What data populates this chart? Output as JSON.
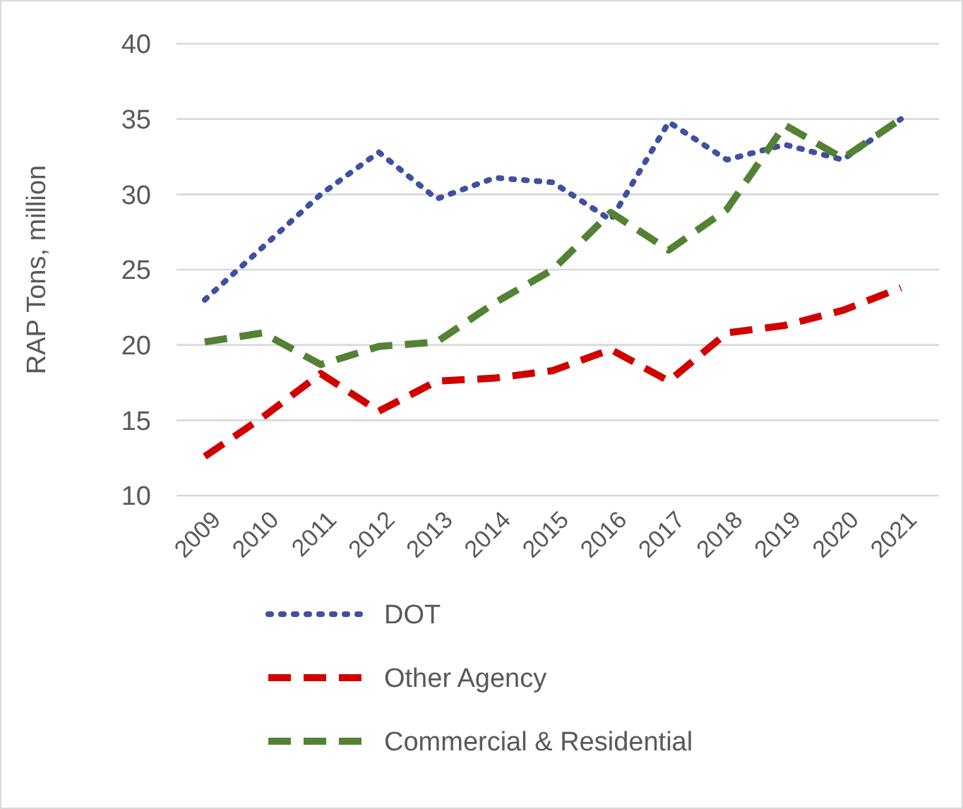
{
  "chart_data": {
    "type": "line",
    "ylabel": "RAP Tons, million",
    "categories": [
      "2009",
      "2010",
      "2011",
      "2012",
      "2013",
      "2014",
      "2015",
      "2016",
      "2017",
      "2018",
      "2019",
      "2020",
      "2021"
    ],
    "series": [
      {
        "name": "DOT",
        "color": "#4050a0",
        "line_style": "dotted",
        "values": [
          23,
          26.5,
          30,
          32.8,
          29.7,
          31.1,
          30.8,
          28.3,
          34.8,
          32.3,
          33.3,
          32.3,
          35
        ]
      },
      {
        "name": "Other Agency",
        "color": "#d00000",
        "line_style": "dashed",
        "values": [
          12.6,
          15.2,
          18.1,
          15.6,
          17.6,
          17.8,
          18.3,
          19.7,
          17.6,
          20.8,
          21.3,
          22.3,
          23.8
        ]
      },
      {
        "name": "Commercial & Residential",
        "color": "#548235",
        "line_style": "dashed",
        "values": [
          20.2,
          20.8,
          18.7,
          19.9,
          20.2,
          22.8,
          25,
          28.8,
          26.3,
          29,
          34.6,
          32.4,
          35
        ]
      }
    ],
    "ylim": [
      10,
      40
    ],
    "yticks": [
      10,
      15,
      20,
      25,
      30,
      35,
      40
    ],
    "grid": "y",
    "legend": "bottom",
    "marker": "none"
  }
}
